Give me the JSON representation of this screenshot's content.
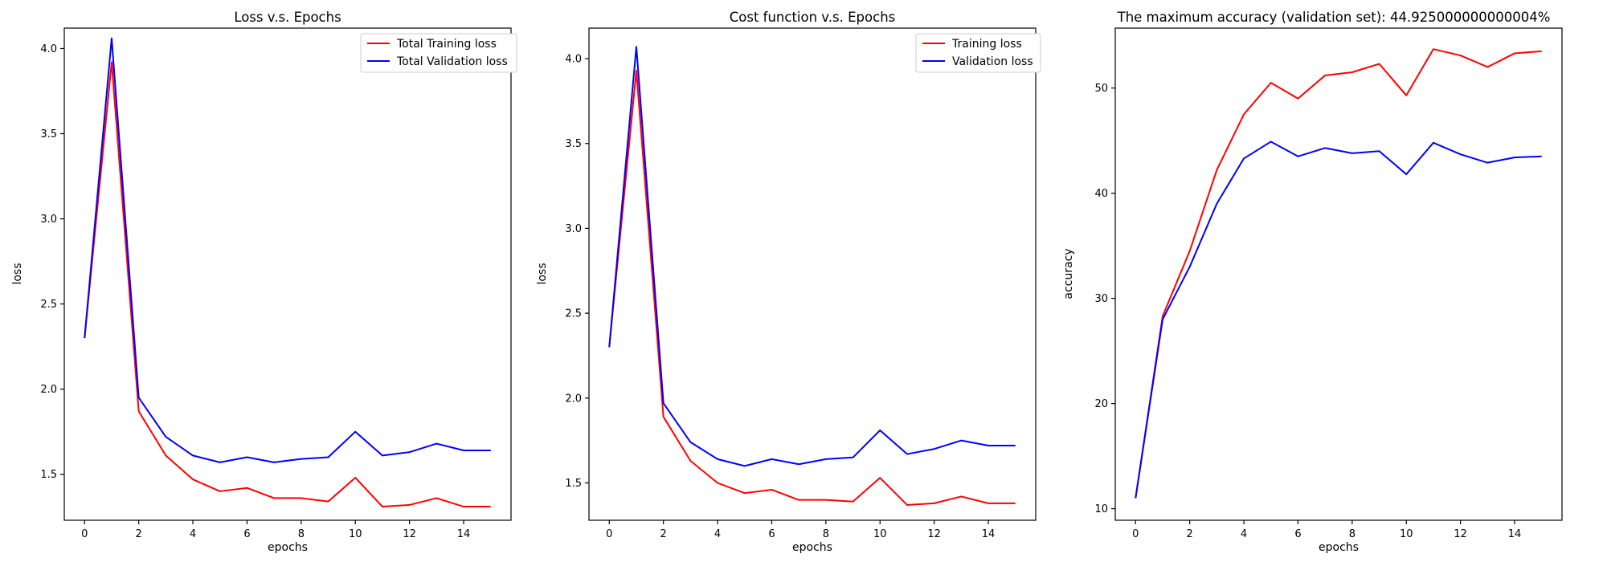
{
  "chart_data": [
    {
      "type": "line",
      "title": "Loss v.s. Epochs",
      "xlabel": "epochs",
      "ylabel": "loss",
      "xlim": [
        -0.75,
        15.75
      ],
      "ylim": [
        1.23,
        4.12
      ],
      "xticks": [
        0,
        2,
        4,
        6,
        8,
        10,
        12,
        14
      ],
      "yticks": [
        1.5,
        2.0,
        2.5,
        3.0,
        3.5,
        4.0
      ],
      "ytick_labels": [
        "1.5",
        "2.0",
        "2.5",
        "3.0",
        "3.5",
        "4.0"
      ],
      "grid": false,
      "legend_position": "top-right",
      "x": [
        0,
        1,
        2,
        3,
        4,
        5,
        6,
        7,
        8,
        9,
        10,
        11,
        12,
        13,
        14,
        15
      ],
      "series": [
        {
          "name": "Total Training loss",
          "color": "#ff0000",
          "values": [
            2.3,
            3.92,
            1.87,
            1.61,
            1.47,
            1.4,
            1.42,
            1.36,
            1.36,
            1.34,
            1.48,
            1.31,
            1.32,
            1.36,
            1.31,
            1.31
          ]
        },
        {
          "name": "Total Validation loss",
          "color": "#0000ff",
          "values": [
            2.3,
            4.06,
            1.95,
            1.72,
            1.61,
            1.57,
            1.6,
            1.57,
            1.59,
            1.6,
            1.75,
            1.61,
            1.63,
            1.68,
            1.64,
            1.64
          ]
        }
      ]
    },
    {
      "type": "line",
      "title": "Cost function v.s. Epochs",
      "xlabel": "epochs",
      "ylabel": "loss",
      "xlim": [
        -0.75,
        15.75
      ],
      "ylim": [
        1.28,
        4.18
      ],
      "xticks": [
        0,
        2,
        4,
        6,
        8,
        10,
        12,
        14
      ],
      "yticks": [
        1.5,
        2.0,
        2.5,
        3.0,
        3.5,
        4.0
      ],
      "ytick_labels": [
        "1.5",
        "2.0",
        "2.5",
        "3.0",
        "3.5",
        "4.0"
      ],
      "grid": false,
      "legend_position": "top-right",
      "x": [
        0,
        1,
        2,
        3,
        4,
        5,
        6,
        7,
        8,
        9,
        10,
        11,
        12,
        13,
        14,
        15
      ],
      "series": [
        {
          "name": "Training loss",
          "color": "#ff0000",
          "values": [
            2.3,
            3.93,
            1.89,
            1.63,
            1.5,
            1.44,
            1.46,
            1.4,
            1.4,
            1.39,
            1.53,
            1.37,
            1.38,
            1.42,
            1.38,
            1.38
          ]
        },
        {
          "name": "Validation loss",
          "color": "#0000ff",
          "values": [
            2.3,
            4.07,
            1.97,
            1.74,
            1.64,
            1.6,
            1.64,
            1.61,
            1.64,
            1.65,
            1.81,
            1.67,
            1.7,
            1.75,
            1.72,
            1.72
          ]
        }
      ]
    },
    {
      "type": "line",
      "title": "The maximum accuracy (validation set): 44.925000000000004%",
      "xlabel": "epochs",
      "ylabel": "accuracy",
      "xlim": [
        -0.75,
        15.75
      ],
      "ylim": [
        8.9,
        55.7
      ],
      "xticks": [
        0,
        2,
        4,
        6,
        8,
        10,
        12,
        14
      ],
      "yticks": [
        10,
        20,
        30,
        40,
        50
      ],
      "ytick_labels": [
        "10",
        "20",
        "30",
        "40",
        "50"
      ],
      "grid": false,
      "legend_position": "none",
      "x": [
        0,
        1,
        2,
        3,
        4,
        5,
        6,
        7,
        8,
        9,
        10,
        11,
        12,
        13,
        14,
        15
      ],
      "series": [
        {
          "color": "#ff0000",
          "values": [
            11.0,
            28.3,
            34.5,
            42.2,
            47.5,
            50.5,
            49.0,
            51.2,
            51.5,
            52.3,
            49.3,
            53.7,
            53.1,
            52.0,
            53.3,
            53.5
          ]
        },
        {
          "color": "#0000ff",
          "values": [
            11.0,
            28.0,
            33.0,
            39.0,
            43.3,
            44.9,
            43.5,
            44.3,
            43.8,
            44.0,
            41.8,
            44.8,
            43.7,
            42.9,
            43.4,
            43.5
          ]
        }
      ]
    }
  ]
}
